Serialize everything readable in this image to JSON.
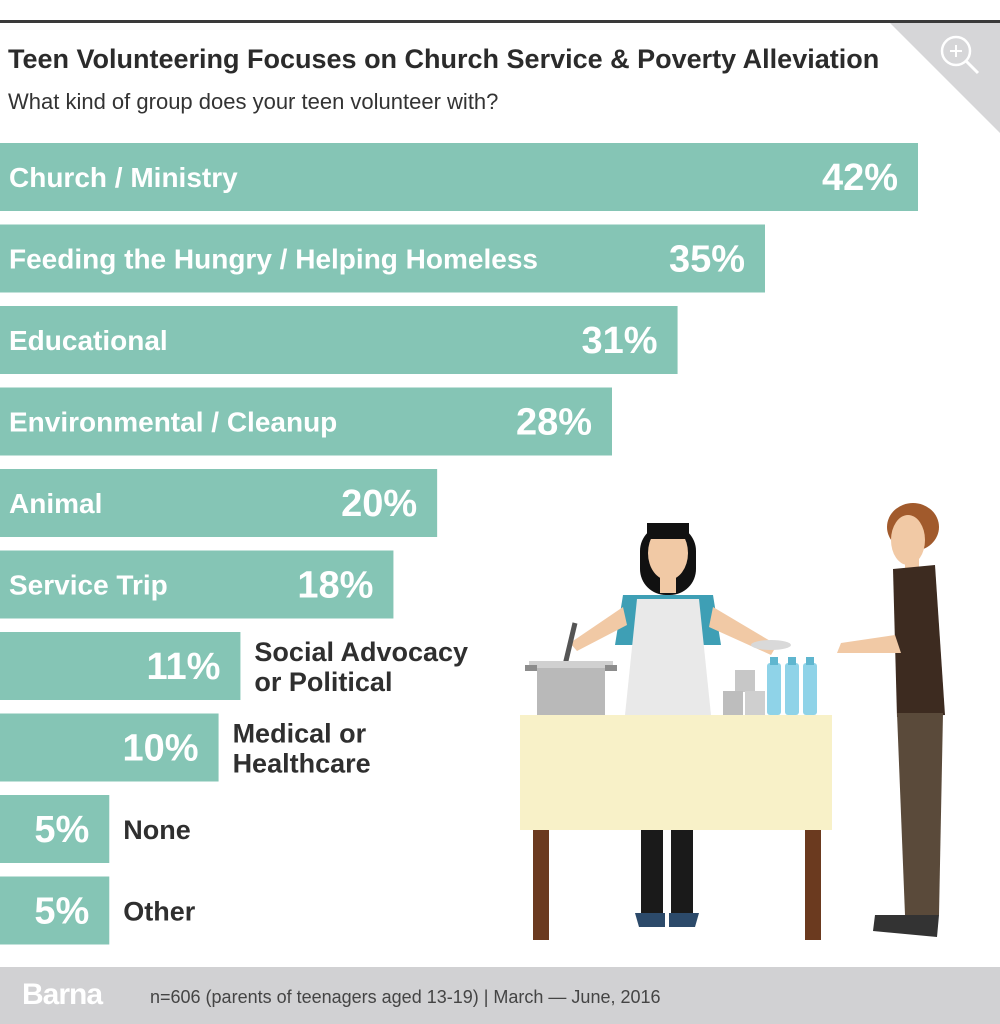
{
  "header": {
    "title": "Teen Volunteering Focuses on Church Service & Poverty Alleviation",
    "subtitle": "What kind of group does your teen volunteer with?"
  },
  "icons": {
    "zoom": "zoom-in-icon",
    "illustration": "soup-kitchen-illustration"
  },
  "colors": {
    "bar": "#85c5b5",
    "text_dark": "#2f2f2f",
    "footer_bg": "#d1d1d3"
  },
  "chart_data": {
    "type": "bar",
    "orientation": "horizontal",
    "categories": [
      "Church / Ministry",
      "Feeding the Hungry / Helping Homeless",
      "Educational",
      "Environmental / Cleanup",
      "Animal",
      "Service Trip",
      "Social Advocacy or Political",
      "Medical or Healthcare",
      "None",
      "Other"
    ],
    "label_lines": [
      [
        "Church / Ministry"
      ],
      [
        "Feeding the Hungry / Helping Homeless"
      ],
      [
        "Educational"
      ],
      [
        "Environmental / Cleanup"
      ],
      [
        "Animal"
      ],
      [
        "Service Trip"
      ],
      [
        "Social Advocacy",
        "or Political"
      ],
      [
        "Medical or",
        "Healthcare"
      ],
      [
        "None"
      ],
      [
        "Other"
      ]
    ],
    "values": [
      42,
      35,
      31,
      28,
      20,
      18,
      11,
      10,
      5,
      5
    ],
    "value_labels": [
      "42%",
      "35%",
      "31%",
      "28%",
      "20%",
      "18%",
      "11%",
      "10%",
      "5%",
      "5%"
    ],
    "unit": "%",
    "grid": false,
    "legend": "none"
  },
  "footer": {
    "brand": "Barna",
    "note": "n=606 (parents of teenagers aged 13-19)  |  March — June, 2016"
  }
}
